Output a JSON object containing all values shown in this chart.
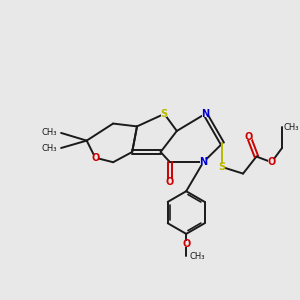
{
  "bg_color": "#e8e8e8",
  "bond_color": "#1a1a1a",
  "S_color": "#b8b800",
  "N_color": "#0000cc",
  "O_color": "#cc0000",
  "line_width": 1.4,
  "font_size": 7.0,
  "figsize": [
    3.0,
    3.0
  ],
  "dpi": 100,
  "xlim": [
    0,
    10
  ],
  "ylim": [
    0,
    10
  ]
}
